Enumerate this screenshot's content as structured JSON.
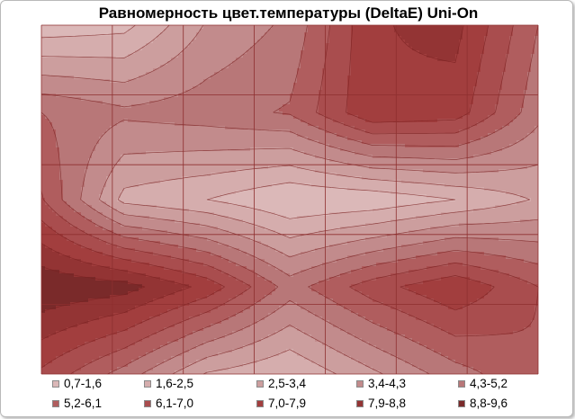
{
  "chart_data": {
    "type": "heatmap",
    "title": "Равномерность цвет.температуры (DeltaE) Uni-On",
    "xlabel": "",
    "ylabel": "",
    "grid": true,
    "legend_position": "bottom",
    "grid_size": {
      "columns": 7,
      "rows": 5
    },
    "values": [
      [
        1.0,
        1.3,
        3.5,
        4.5,
        7.8,
        8.2,
        5.2
      ],
      [
        5.2,
        4.5,
        4.8,
        5.3,
        7.8,
        7.5,
        4.6
      ],
      [
        6.2,
        2.2,
        1.6,
        0.7,
        0.9,
        1.6,
        2.6
      ],
      [
        9.6,
        9.2,
        7.6,
        4.8,
        6.6,
        7.8,
        6.1
      ],
      [
        6.8,
        4.8,
        2.4,
        1.6,
        3.2,
        4.8,
        6.0
      ]
    ],
    "contour_levels": [
      0.7,
      1.6,
      2.5,
      3.4,
      4.3,
      5.2,
      6.1,
      7.0,
      7.9,
      8.8,
      9.6
    ],
    "legend": [
      {
        "label": "0,7-1,6",
        "color": "#dbb8b8"
      },
      {
        "label": "1,6-2,5",
        "color": "#d5adad"
      },
      {
        "label": "2,5-3,4",
        "color": "#cc9e9e"
      },
      {
        "label": "3,4-4,3",
        "color": "#c28b8c"
      },
      {
        "label": "4,3-5,2",
        "color": "#b87778"
      },
      {
        "label": "5,2-6,1",
        "color": "#b05d5e"
      },
      {
        "label": "6,1-7,0",
        "color": "#a94d4e"
      },
      {
        "label": "7,0-7,9",
        "color": "#a23e3e"
      },
      {
        "label": "7,9-8,8",
        "color": "#933434"
      },
      {
        "label": "8,8-9,6",
        "color": "#7a2a2a"
      }
    ]
  }
}
